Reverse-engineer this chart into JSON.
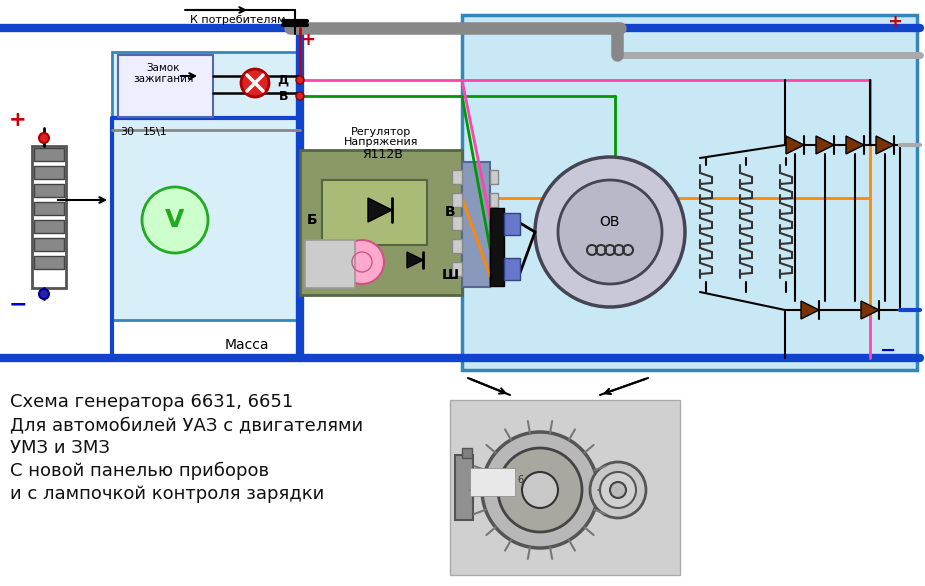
{
  "title": "",
  "bg_color": "#ffffff",
  "diagram_bg": "#d6ecf7",
  "left_panel_bg": "#ddeeff",
  "text_lines": [
    "Схема генератора 6631, 6651",
    "Для автомобилей УАЗ с двигателями",
    "УМЗ и ЗМЗ",
    "С новой панелью приборов",
    "и с лампочкой контроля зарядки"
  ],
  "label_k_potrebitelyam": "К потребителям",
  "label_zamok_line1": "Замок",
  "label_zamok_line2": "зажигания",
  "label_massa": "Масса",
  "label_regulator_line1": "Регулятор",
  "label_regulator_line2": "Напряжения",
  "label_regulator_line3": "Я112В",
  "label_d": "Д",
  "label_b_top": "В",
  "label_b_right": "В",
  "label_sh": "Ш",
  "label_bb": "Б",
  "label_ov": "ОВ",
  "label_30": "30",
  "label_151": "15\\1",
  "label_plus": "+",
  "label_minus": "−"
}
